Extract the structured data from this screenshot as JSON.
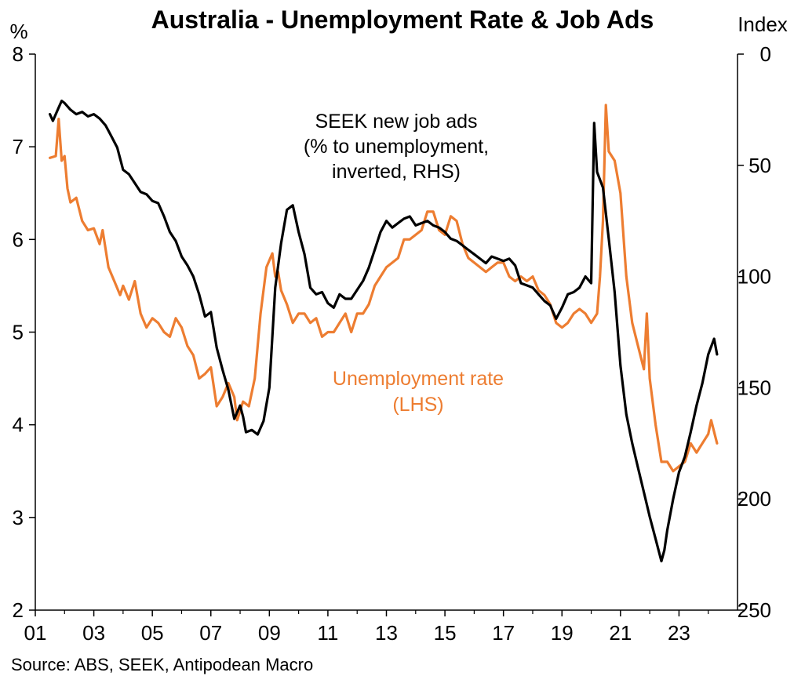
{
  "chart_data": {
    "type": "line",
    "title": "Australia - Unemployment Rate & Job Ads",
    "left_axis": {
      "unit": "%",
      "min": 2,
      "max": 8,
      "ticks": [
        "2",
        "3",
        "4",
        "5",
        "6",
        "7",
        "8"
      ]
    },
    "right_axis": {
      "unit": "Index",
      "min": 0,
      "max": 250,
      "inverted": true,
      "ticks": [
        "0",
        "50",
        "100",
        "150",
        "200",
        "250"
      ]
    },
    "x_axis": {
      "min": 2001,
      "max": 2025,
      "ticks": [
        "01",
        "03",
        "05",
        "07",
        "09",
        "11",
        "13",
        "15",
        "17",
        "19",
        "21",
        "23"
      ]
    },
    "annotations": {
      "seek": [
        "SEEK new job ads",
        "(% to unemployment,",
        "inverted, RHS)"
      ],
      "unemp": [
        "Unemployment rate",
        "(LHS)"
      ]
    },
    "source": "Source: ABS, SEEK, Antipodean Macro",
    "grid": false,
    "series": [
      {
        "key": "unemployment_rate",
        "axis": "left",
        "color": "#ED7D31",
        "x": [
          2001.5,
          2001.7,
          2001.8,
          2001.9,
          2002.0,
          2002.1,
          2002.2,
          2002.4,
          2002.6,
          2002.8,
          2003.0,
          2003.2,
          2003.3,
          2003.5,
          2003.7,
          2003.9,
          2004.0,
          2004.2,
          2004.4,
          2004.6,
          2004.8,
          2005.0,
          2005.2,
          2005.4,
          2005.6,
          2005.8,
          2006.0,
          2006.2,
          2006.4,
          2006.6,
          2006.8,
          2007.0,
          2007.2,
          2007.4,
          2007.6,
          2007.8,
          2007.9,
          2008.1,
          2008.3,
          2008.5,
          2008.7,
          2008.9,
          2009.1,
          2009.2,
          2009.3,
          2009.4,
          2009.6,
          2009.8,
          2010.0,
          2010.2,
          2010.4,
          2010.6,
          2010.8,
          2011.0,
          2011.2,
          2011.4,
          2011.6,
          2011.8,
          2012.0,
          2012.2,
          2012.4,
          2012.6,
          2012.8,
          2013.0,
          2013.2,
          2013.4,
          2013.6,
          2013.8,
          2014.0,
          2014.2,
          2014.4,
          2014.6,
          2014.8,
          2015.0,
          2015.2,
          2015.4,
          2015.6,
          2015.8,
          2016.0,
          2016.2,
          2016.4,
          2016.6,
          2016.8,
          2017.0,
          2017.2,
          2017.4,
          2017.6,
          2017.8,
          2018.0,
          2018.2,
          2018.4,
          2018.6,
          2018.8,
          2019.0,
          2019.2,
          2019.4,
          2019.6,
          2019.8,
          2020.0,
          2020.2,
          2020.3,
          2020.4,
          2020.5,
          2020.6,
          2020.8,
          2021.0,
          2021.2,
          2021.4,
          2021.6,
          2021.8,
          2021.9,
          2022.0,
          2022.2,
          2022.4,
          2022.6,
          2022.8,
          2023.0,
          2023.2,
          2023.4,
          2023.6,
          2023.8,
          2024.0,
          2024.1,
          2024.3
        ],
        "y": [
          6.88,
          6.9,
          7.3,
          6.85,
          6.9,
          6.55,
          6.4,
          6.45,
          6.2,
          6.1,
          6.12,
          5.95,
          6.1,
          5.7,
          5.55,
          5.4,
          5.5,
          5.35,
          5.55,
          5.2,
          5.05,
          5.15,
          5.1,
          5.0,
          4.95,
          5.15,
          5.05,
          4.85,
          4.75,
          4.5,
          4.55,
          4.62,
          4.2,
          4.3,
          4.45,
          4.3,
          4.05,
          4.25,
          4.2,
          4.5,
          5.2,
          5.7,
          5.85,
          5.6,
          5.65,
          5.45,
          5.3,
          5.1,
          5.2,
          5.2,
          5.1,
          5.15,
          4.95,
          5.0,
          5.0,
          5.1,
          5.2,
          5.0,
          5.2,
          5.2,
          5.3,
          5.5,
          5.6,
          5.7,
          5.75,
          5.8,
          6.0,
          6.0,
          6.05,
          6.1,
          6.3,
          6.3,
          6.1,
          6.05,
          6.25,
          6.2,
          5.95,
          5.8,
          5.75,
          5.7,
          5.65,
          5.7,
          5.75,
          5.75,
          5.6,
          5.55,
          5.6,
          5.55,
          5.6,
          5.45,
          5.4,
          5.3,
          5.1,
          5.05,
          5.1,
          5.2,
          5.25,
          5.2,
          5.1,
          5.2,
          5.6,
          6.2,
          7.45,
          6.95,
          6.85,
          6.5,
          5.6,
          5.1,
          4.85,
          4.6,
          5.2,
          4.5,
          4.0,
          3.6,
          3.6,
          3.5,
          3.55,
          3.6,
          3.8,
          3.7,
          3.8,
          3.9,
          4.05,
          3.8
        ]
      },
      {
        "key": "seek_job_ads",
        "axis": "right",
        "color": "#000000",
        "x": [
          2001.5,
          2001.6,
          2001.8,
          2001.9,
          2002.0,
          2002.2,
          2002.4,
          2002.6,
          2002.8,
          2003.0,
          2003.2,
          2003.4,
          2003.6,
          2003.8,
          2004.0,
          2004.2,
          2004.4,
          2004.6,
          2004.8,
          2005.0,
          2005.2,
          2005.4,
          2005.6,
          2005.8,
          2006.0,
          2006.2,
          2006.4,
          2006.6,
          2006.8,
          2007.0,
          2007.2,
          2007.4,
          2007.6,
          2007.8,
          2008.0,
          2008.1,
          2008.2,
          2008.4,
          2008.6,
          2008.8,
          2009.0,
          2009.2,
          2009.4,
          2009.6,
          2009.8,
          2010.0,
          2010.2,
          2010.4,
          2010.6,
          2010.8,
          2011.0,
          2011.2,
          2011.4,
          2011.6,
          2011.8,
          2012.0,
          2012.2,
          2012.4,
          2012.6,
          2012.8,
          2013.0,
          2013.2,
          2013.4,
          2013.6,
          2013.8,
          2014.0,
          2014.2,
          2014.4,
          2014.6,
          2014.8,
          2015.0,
          2015.2,
          2015.4,
          2015.6,
          2015.8,
          2016.0,
          2016.2,
          2016.4,
          2016.6,
          2016.8,
          2017.0,
          2017.2,
          2017.4,
          2017.6,
          2017.8,
          2018.0,
          2018.2,
          2018.4,
          2018.6,
          2018.8,
          2019.0,
          2019.2,
          2019.4,
          2019.6,
          2019.8,
          2020.0,
          2020.1,
          2020.2,
          2020.4,
          2020.6,
          2020.8,
          2021.0,
          2021.2,
          2021.4,
          2021.6,
          2021.8,
          2022.0,
          2022.2,
          2022.4,
          2022.5,
          2022.6,
          2022.8,
          2023.0,
          2023.2,
          2023.4,
          2023.6,
          2023.8,
          2024.0,
          2024.2,
          2024.3
        ],
        "y": [
          27,
          30,
          24,
          21,
          22,
          25,
          27,
          26,
          28,
          27,
          29,
          32,
          37,
          42,
          52,
          54,
          58,
          62,
          63,
          66,
          67,
          73,
          80,
          84,
          91,
          95,
          100,
          108,
          118,
          116,
          132,
          142,
          151,
          164,
          158,
          163,
          170,
          169,
          171,
          165,
          150,
          105,
          85,
          70,
          68,
          80,
          90,
          105,
          108,
          107,
          112,
          114,
          108,
          110,
          110,
          106,
          102,
          96,
          88,
          80,
          75,
          78,
          76,
          74,
          73,
          77,
          76,
          75,
          77,
          78,
          80,
          83,
          84,
          86,
          88,
          90,
          92,
          94,
          91,
          92,
          93,
          92,
          95,
          103,
          104,
          105,
          108,
          111,
          113,
          119,
          114,
          108,
          107,
          105,
          100,
          103,
          31,
          53,
          60,
          83,
          107,
          140,
          162,
          175,
          186,
          197,
          208,
          218,
          228,
          223,
          214,
          200,
          188,
          181,
          170,
          158,
          148,
          135,
          128,
          135
        ]
      }
    ]
  }
}
